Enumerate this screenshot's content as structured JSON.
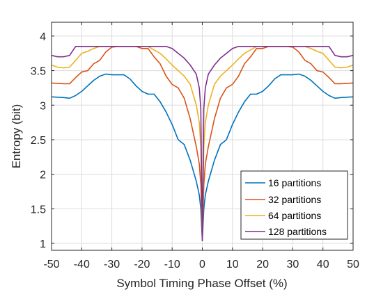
{
  "chart_data": {
    "type": "line",
    "title": "",
    "xlabel": "Symbol Timing Phase Offset (%)",
    "ylabel": "Entropy (bit)",
    "xlim": [
      -50,
      50
    ],
    "ylim": [
      0.9,
      4.2
    ],
    "xticks": [
      -50,
      -40,
      -30,
      -20,
      -10,
      0,
      10,
      20,
      30,
      40,
      50
    ],
    "xtick_labels": [
      "-50",
      "-40",
      "-30",
      "-20",
      "-10",
      "0",
      "10",
      "20",
      "30",
      "40",
      "50"
    ],
    "yticks": [
      1,
      1.5,
      2,
      2.5,
      3,
      3.5,
      4
    ],
    "ytick_labels": [
      "1",
      "1.5",
      "2",
      "2.5",
      "3",
      "3.5",
      "4"
    ],
    "grid": true,
    "legend_position": "bottom-right",
    "series": [
      {
        "name": "16 partitions",
        "color": "#0072BD",
        "x": [
          -50,
          -46,
          -44,
          -42,
          -40,
          -38,
          -36,
          -34,
          -32,
          -30,
          -28,
          -26,
          -24,
          -22,
          -20,
          -18,
          -16,
          -14,
          -12,
          -10,
          -8,
          -6,
          -4,
          -2,
          -1,
          -0.5,
          0,
          0.5,
          1,
          2,
          4,
          6,
          8,
          10,
          12,
          14,
          16,
          18,
          20,
          22,
          24,
          26,
          28,
          30,
          32,
          34,
          36,
          38,
          40,
          42,
          44,
          46,
          50
        ],
        "y": [
          3.12,
          3.11,
          3.1,
          3.14,
          3.2,
          3.28,
          3.36,
          3.42,
          3.45,
          3.44,
          3.44,
          3.44,
          3.38,
          3.28,
          3.2,
          3.16,
          3.16,
          3.05,
          2.9,
          2.72,
          2.5,
          2.43,
          2.2,
          1.9,
          1.7,
          1.5,
          1.04,
          1.5,
          1.7,
          1.9,
          2.2,
          2.43,
          2.5,
          2.72,
          2.9,
          3.05,
          3.16,
          3.16,
          3.2,
          3.28,
          3.38,
          3.44,
          3.44,
          3.44,
          3.45,
          3.42,
          3.36,
          3.28,
          3.2,
          3.14,
          3.1,
          3.11,
          3.12
        ]
      },
      {
        "name": "32 partitions",
        "color": "#D95319",
        "x": [
          -50,
          -46,
          -44,
          -42,
          -40,
          -38,
          -36,
          -34,
          -32,
          -30,
          -28,
          -26,
          -24,
          -22,
          -20,
          -18,
          -16,
          -14,
          -12,
          -10,
          -8,
          -6,
          -4,
          -2,
          -1,
          -0.5,
          0,
          0.5,
          1,
          2,
          4,
          6,
          8,
          10,
          12,
          14,
          16,
          18,
          20,
          22,
          24,
          26,
          28,
          30,
          32,
          34,
          36,
          38,
          40,
          42,
          44,
          46,
          50
        ],
        "y": [
          3.32,
          3.31,
          3.31,
          3.4,
          3.48,
          3.5,
          3.6,
          3.65,
          3.77,
          3.84,
          3.85,
          3.85,
          3.85,
          3.85,
          3.82,
          3.82,
          3.7,
          3.6,
          3.42,
          3.3,
          3.25,
          3.1,
          2.8,
          2.4,
          2.15,
          1.85,
          1.04,
          1.85,
          2.15,
          2.4,
          2.8,
          3.1,
          3.25,
          3.3,
          3.42,
          3.6,
          3.7,
          3.82,
          3.82,
          3.85,
          3.85,
          3.85,
          3.85,
          3.84,
          3.77,
          3.65,
          3.6,
          3.5,
          3.48,
          3.4,
          3.31,
          3.31,
          3.32
        ]
      },
      {
        "name": "64 partitions",
        "color": "#EDB120",
        "x": [
          -50,
          -48,
          -46,
          -44,
          -42,
          -40,
          -38,
          -36,
          -34,
          -32,
          -30,
          -28,
          -26,
          -24,
          -22,
          -20,
          -18,
          -16,
          -14,
          -12,
          -10,
          -8,
          -6,
          -4,
          -2,
          -1,
          -0.5,
          0,
          0.5,
          1,
          2,
          4,
          6,
          8,
          10,
          12,
          14,
          16,
          18,
          20,
          22,
          24,
          26,
          28,
          30,
          32,
          34,
          36,
          38,
          40,
          42,
          44,
          46,
          48,
          50
        ],
        "y": [
          3.58,
          3.55,
          3.54,
          3.55,
          3.65,
          3.75,
          3.78,
          3.82,
          3.85,
          3.85,
          3.85,
          3.85,
          3.85,
          3.85,
          3.85,
          3.85,
          3.85,
          3.8,
          3.75,
          3.67,
          3.58,
          3.5,
          3.42,
          3.3,
          3.0,
          2.75,
          2.4,
          1.04,
          2.4,
          2.75,
          3.0,
          3.3,
          3.42,
          3.5,
          3.58,
          3.67,
          3.75,
          3.8,
          3.85,
          3.85,
          3.85,
          3.85,
          3.85,
          3.85,
          3.85,
          3.85,
          3.85,
          3.82,
          3.78,
          3.75,
          3.65,
          3.55,
          3.54,
          3.55,
          3.58
        ]
      },
      {
        "name": "128 partitions",
        "color": "#7E2F8E",
        "x": [
          -50,
          -48,
          -46,
          -44,
          -42,
          -40,
          -38,
          -36,
          -34,
          -32,
          -30,
          -28,
          -26,
          -24,
          -22,
          -20,
          -18,
          -16,
          -14,
          -12,
          -10,
          -8,
          -6,
          -4,
          -2,
          -1,
          -0.5,
          0,
          0.5,
          1,
          2,
          4,
          6,
          8,
          10,
          12,
          14,
          16,
          18,
          20,
          22,
          24,
          26,
          28,
          30,
          32,
          34,
          36,
          38,
          40,
          42,
          44,
          46,
          48,
          50
        ],
        "y": [
          3.72,
          3.7,
          3.7,
          3.72,
          3.85,
          3.85,
          3.85,
          3.85,
          3.85,
          3.85,
          3.85,
          3.85,
          3.85,
          3.85,
          3.85,
          3.85,
          3.85,
          3.85,
          3.85,
          3.85,
          3.82,
          3.75,
          3.68,
          3.58,
          3.45,
          3.25,
          2.95,
          1.04,
          2.95,
          3.25,
          3.45,
          3.58,
          3.68,
          3.75,
          3.82,
          3.85,
          3.85,
          3.85,
          3.85,
          3.85,
          3.85,
          3.85,
          3.85,
          3.85,
          3.85,
          3.85,
          3.85,
          3.85,
          3.85,
          3.85,
          3.85,
          3.72,
          3.7,
          3.7,
          3.72
        ]
      }
    ]
  }
}
